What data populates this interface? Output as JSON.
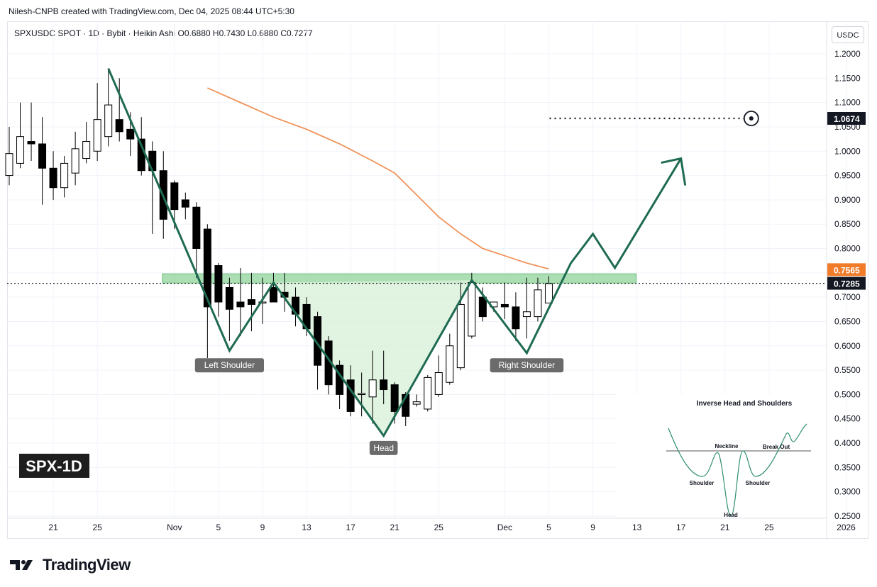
{
  "header": {
    "attribution": "Nilesh-CNPB created with TradingView.com, Dec 04, 2025 08:44 UTC+5:30",
    "symbol_legend": "SPXUSDC SPOT · 1D · Bybit · Heikin Ashi",
    "ohlc": [
      {
        "k": "O",
        "v": "0.6880"
      },
      {
        "k": "H",
        "v": "0.7430"
      },
      {
        "k": "L",
        "v": "0.6880"
      },
      {
        "k": "C",
        "v": "0.7277"
      }
    ],
    "currency": "USDC"
  },
  "watermark": "SPX-1D",
  "footer": {
    "brand": "TradingView"
  },
  "colors": {
    "bull_candle": "#ffffff",
    "bear_candle": "#000000",
    "pattern_line": "#1f6b52",
    "sma_line": "#f0935a",
    "neckline_zone": "#8fd39a",
    "pattern_fill": "#d9f0d9",
    "price_label_bg": "#131722",
    "sma_label_bg": "#f07b28"
  },
  "chart_data": {
    "type": "candlestick",
    "style": "Heikin Ashi",
    "timeframe": "1D",
    "x_ticks": [
      "21",
      "25",
      "Nov",
      "5",
      "9",
      "13",
      "17",
      "21",
      "25",
      "Dec",
      "5",
      "9",
      "13",
      "17",
      "21",
      "25",
      "2026"
    ],
    "y_ticks": [
      "1.2000",
      "1.1500",
      "1.1000",
      "1.0500",
      "1.0000",
      "0.9500",
      "0.9000",
      "0.8500",
      "0.8000",
      "0.7500",
      "0.7000",
      "0.6500",
      "0.6000",
      "0.5500",
      "0.5000",
      "0.4500",
      "0.4000",
      "0.3500",
      "0.3000",
      "0.2500"
    ],
    "ylim": [
      0.25,
      1.2
    ],
    "candles": [
      {
        "date": "2025-10-17",
        "o": 0.95,
        "h": 1.05,
        "l": 0.93,
        "c": 0.995
      },
      {
        "date": "2025-10-18",
        "o": 0.975,
        "h": 1.1,
        "l": 0.965,
        "c": 1.03
      },
      {
        "date": "2025-10-19",
        "o": 1.02,
        "h": 1.1,
        "l": 0.98,
        "c": 1.015
      },
      {
        "date": "2025-10-20",
        "o": 1.015,
        "h": 1.07,
        "l": 0.89,
        "c": 0.965
      },
      {
        "date": "2025-10-21",
        "o": 0.965,
        "h": 1.0,
        "l": 0.9,
        "c": 0.925
      },
      {
        "date": "2025-10-22",
        "o": 0.925,
        "h": 0.99,
        "l": 0.905,
        "c": 0.975
      },
      {
        "date": "2025-10-23",
        "o": 0.955,
        "h": 1.04,
        "l": 0.93,
        "c": 1.005
      },
      {
        "date": "2025-10-24",
        "o": 0.985,
        "h": 1.06,
        "l": 0.975,
        "c": 1.02
      },
      {
        "date": "2025-10-25",
        "o": 1.0,
        "h": 1.14,
        "l": 0.98,
        "c": 1.065
      },
      {
        "date": "2025-10-26",
        "o": 1.03,
        "h": 1.17,
        "l": 1.01,
        "c": 1.095
      },
      {
        "date": "2025-10-27",
        "o": 1.065,
        "h": 1.15,
        "l": 1.02,
        "c": 1.04
      },
      {
        "date": "2025-10-28",
        "o": 1.045,
        "h": 1.08,
        "l": 0.99,
        "c": 1.025
      },
      {
        "date": "2025-10-29",
        "o": 1.025,
        "h": 1.07,
        "l": 0.95,
        "c": 0.96
      },
      {
        "date": "2025-10-30",
        "o": 1.0,
        "h": 1.02,
        "l": 0.83,
        "c": 0.96
      },
      {
        "date": "2025-10-31",
        "o": 0.96,
        "h": 1.0,
        "l": 0.82,
        "c": 0.86
      },
      {
        "date": "2025-11-01",
        "o": 0.935,
        "h": 0.94,
        "l": 0.84,
        "c": 0.88
      },
      {
        "date": "2025-11-02",
        "o": 0.9,
        "h": 0.915,
        "l": 0.86,
        "c": 0.885
      },
      {
        "date": "2025-11-03",
        "o": 0.885,
        "h": 0.895,
        "l": 0.74,
        "c": 0.8
      },
      {
        "date": "2025-11-04",
        "o": 0.84,
        "h": 0.85,
        "l": 0.575,
        "c": 0.68
      },
      {
        "date": "2025-11-05",
        "o": 0.765,
        "h": 0.77,
        "l": 0.66,
        "c": 0.69
      },
      {
        "date": "2025-11-06",
        "o": 0.72,
        "h": 0.74,
        "l": 0.61,
        "c": 0.675
      },
      {
        "date": "2025-11-07",
        "o": 0.69,
        "h": 0.76,
        "l": 0.62,
        "c": 0.68
      },
      {
        "date": "2025-11-08",
        "o": 0.695,
        "h": 0.75,
        "l": 0.63,
        "c": 0.685
      },
      {
        "date": "2025-11-09",
        "o": 0.69,
        "h": 0.74,
        "l": 0.645,
        "c": 0.69
      },
      {
        "date": "2025-11-10",
        "o": 0.72,
        "h": 0.75,
        "l": 0.695,
        "c": 0.69
      },
      {
        "date": "2025-11-11",
        "o": 0.71,
        "h": 0.75,
        "l": 0.67,
        "c": 0.7
      },
      {
        "date": "2025-11-12",
        "o": 0.7,
        "h": 0.72,
        "l": 0.64,
        "c": 0.665
      },
      {
        "date": "2025-11-13",
        "o": 0.685,
        "h": 0.7,
        "l": 0.62,
        "c": 0.635
      },
      {
        "date": "2025-11-14",
        "o": 0.66,
        "h": 0.67,
        "l": 0.51,
        "c": 0.56
      },
      {
        "date": "2025-11-15",
        "o": 0.61,
        "h": 0.62,
        "l": 0.5,
        "c": 0.52
      },
      {
        "date": "2025-11-16",
        "o": 0.56,
        "h": 0.57,
        "l": 0.47,
        "c": 0.5
      },
      {
        "date": "2025-11-17",
        "o": 0.53,
        "h": 0.56,
        "l": 0.455,
        "c": 0.465
      },
      {
        "date": "2025-11-18",
        "o": 0.5,
        "h": 0.545,
        "l": 0.455,
        "c": 0.502
      },
      {
        "date": "2025-11-19",
        "o": 0.495,
        "h": 0.59,
        "l": 0.44,
        "c": 0.53
      },
      {
        "date": "2025-11-20",
        "o": 0.53,
        "h": 0.59,
        "l": 0.48,
        "c": 0.51
      },
      {
        "date": "2025-11-21",
        "o": 0.52,
        "h": 0.525,
        "l": 0.44,
        "c": 0.465
      },
      {
        "date": "2025-11-22",
        "o": 0.5,
        "h": 0.505,
        "l": 0.435,
        "c": 0.455
      },
      {
        "date": "2025-11-23",
        "o": 0.48,
        "h": 0.5,
        "l": 0.475,
        "c": 0.485
      },
      {
        "date": "2025-11-24",
        "o": 0.47,
        "h": 0.54,
        "l": 0.465,
        "c": 0.535
      },
      {
        "date": "2025-11-25",
        "o": 0.5,
        "h": 0.58,
        "l": 0.495,
        "c": 0.545
      },
      {
        "date": "2025-11-26",
        "o": 0.525,
        "h": 0.625,
        "l": 0.52,
        "c": 0.6
      },
      {
        "date": "2025-11-27",
        "o": 0.555,
        "h": 0.73,
        "l": 0.55,
        "c": 0.685
      },
      {
        "date": "2025-11-28",
        "o": 0.62,
        "h": 0.75,
        "l": 0.615,
        "c": 0.73
      },
      {
        "date": "2025-11-29",
        "o": 0.7,
        "h": 0.72,
        "l": 0.65,
        "c": 0.66
      },
      {
        "date": "2025-11-30",
        "o": 0.68,
        "h": 0.69,
        "l": 0.67,
        "c": 0.69
      },
      {
        "date": "2025-12-01",
        "o": 0.685,
        "h": 0.73,
        "l": 0.655,
        "c": 0.68
      },
      {
        "date": "2025-12-02",
        "o": 0.68,
        "h": 0.71,
        "l": 0.61,
        "c": 0.635
      },
      {
        "date": "2025-12-03",
        "o": 0.66,
        "h": 0.74,
        "l": 0.615,
        "c": 0.67
      },
      {
        "date": "2025-12-04",
        "o": 0.66,
        "h": 0.74,
        "l": 0.65,
        "c": 0.715
      },
      {
        "date": "2025-12-05",
        "o": 0.688,
        "h": 0.743,
        "l": 0.688,
        "c": 0.7277
      }
    ],
    "sma": {
      "color": "#f0935a",
      "points": [
        {
          "date": "2025-11-04",
          "v": 1.13
        },
        {
          "date": "2025-11-07",
          "v": 1.1
        },
        {
          "date": "2025-11-10",
          "v": 1.07
        },
        {
          "date": "2025-11-13",
          "v": 1.045
        },
        {
          "date": "2025-11-16",
          "v": 1.015
        },
        {
          "date": "2025-11-19",
          "v": 0.98
        },
        {
          "date": "2025-11-21",
          "v": 0.955
        },
        {
          "date": "2025-11-23",
          "v": 0.91
        },
        {
          "date": "2025-11-25",
          "v": 0.865
        },
        {
          "date": "2025-11-27",
          "v": 0.83
        },
        {
          "date": "2025-11-29",
          "v": 0.8
        },
        {
          "date": "2025-12-01",
          "v": 0.785
        },
        {
          "date": "2025-12-03",
          "v": 0.77
        },
        {
          "date": "2025-12-05",
          "v": 0.758
        }
      ]
    },
    "pattern": {
      "name": "Inverse Head and Shoulders",
      "path": [
        {
          "date": "2025-10-26",
          "v": 1.17
        },
        {
          "date": "2025-11-06",
          "v": 0.59
        },
        {
          "date": "2025-11-10",
          "v": 0.73
        },
        {
          "date": "2025-11-20",
          "v": 0.415
        },
        {
          "date": "2025-11-28",
          "v": 0.735
        },
        {
          "date": "2025-12-03",
          "v": 0.585
        },
        {
          "date": "2025-12-07",
          "v": 0.77
        },
        {
          "date": "2025-12-09",
          "v": 0.83
        },
        {
          "date": "2025-12-11",
          "v": 0.76
        },
        {
          "date": "2025-12-17",
          "v": 0.985
        }
      ],
      "arrow_head": [
        {
          "date": "2025-12-16",
          "v": 0.975
        },
        {
          "date": "2025-12-17",
          "v": 0.985
        },
        {
          "date": "2025-12-17",
          "v": 0.95
        }
      ],
      "neckline_zone": {
        "from": "2025-11-03",
        "to": "2025-12-11",
        "low": 0.729,
        "high": 0.748
      },
      "labels": [
        {
          "text": "Left Shoulder",
          "date": "2025-11-06",
          "v": 0.56
        },
        {
          "text": "Head",
          "date": "2025-11-20",
          "v": 0.39
        },
        {
          "text": "Right Shoulder",
          "date": "2025-12-03",
          "v": 0.56
        }
      ]
    },
    "target": {
      "value": 1.0674,
      "from": "2025-12-07",
      "to": "2025-12-21",
      "label": "1.0674"
    },
    "price_lines": [
      {
        "value": 0.7565,
        "label": "0.7565",
        "kind": "sma"
      },
      {
        "value": 0.7285,
        "label": "0.7285",
        "kind": "last"
      }
    ],
    "inset": {
      "title": "Inverse Head and Shoulders",
      "labels": {
        "neckline": "Neckline",
        "breakout": "Break Out",
        "left_shoulder": "Shoulder",
        "head": "Head",
        "right_shoulder": "Shoulder"
      }
    }
  }
}
